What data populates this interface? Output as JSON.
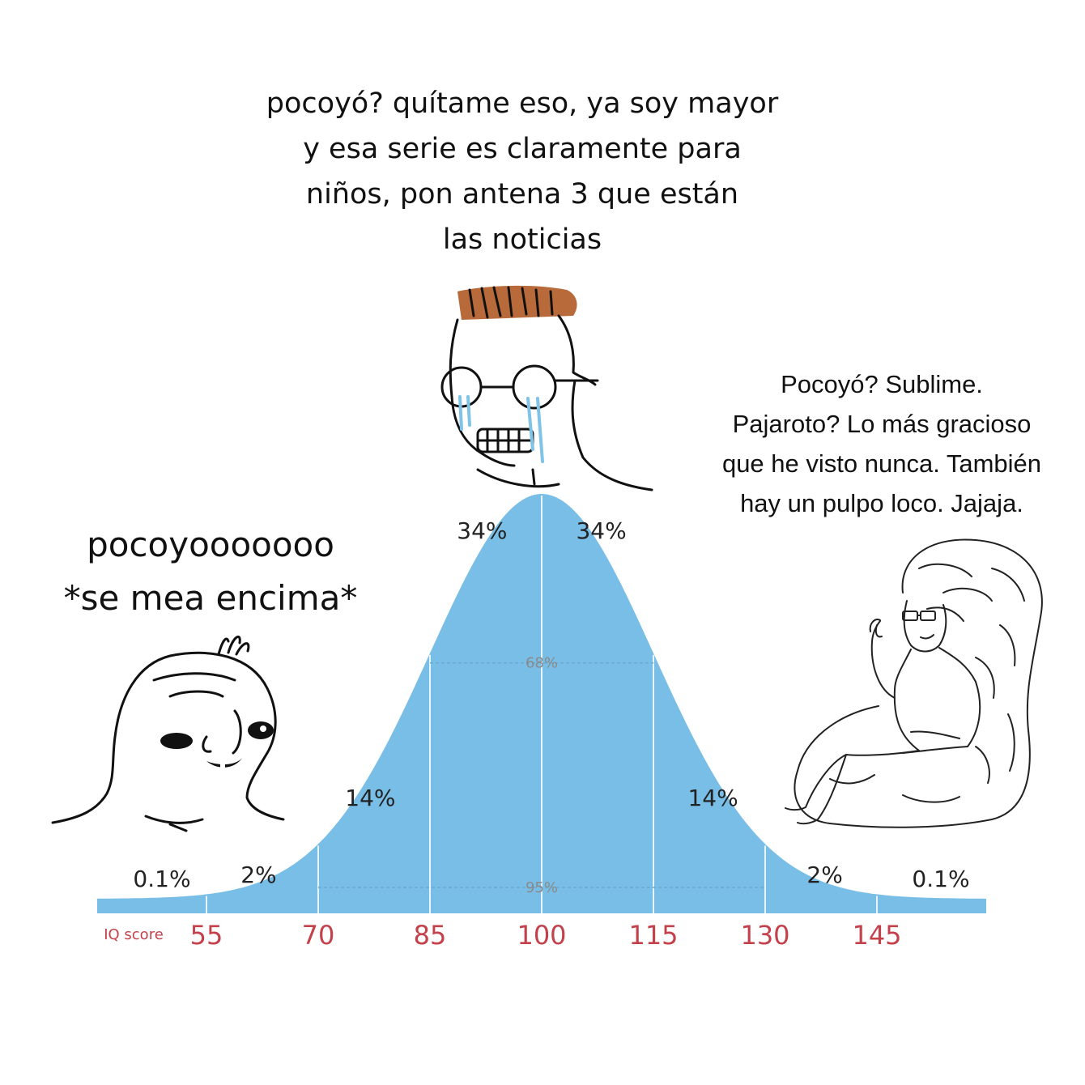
{
  "captions": {
    "middle": [
      "pocoyó? quítame eso, ya soy mayor",
      "y esa serie es claramente para",
      "niños, pon antena 3 que están",
      "las noticias"
    ],
    "right": [
      "Pocoyó? Sublime.",
      "Pajaroto? Lo más gracioso",
      "que he visto nunca. También",
      "hay un pulpo loco. Jajaja."
    ],
    "left": [
      "pocoyooooooo",
      "*se mea encima*"
    ]
  },
  "characters": {
    "left": "brainlet-wojak-icon",
    "middle": "crying-glasses-wojak-icon",
    "right": "big-brain-wojak-icon"
  },
  "chart_data": {
    "type": "area",
    "xlabel": "IQ score",
    "x_ticks": [
      55,
      70,
      85,
      100,
      115,
      130,
      145
    ],
    "mean": 100,
    "sd": 15,
    "segment_labels": [
      "0.1%",
      "2%",
      "14%",
      "34%",
      "34%",
      "14%",
      "2%",
      "0.1%"
    ],
    "band_labels": [
      "68%",
      "95%"
    ],
    "colors": {
      "fill": "#79bee6",
      "tick": "#c4404a",
      "divider": "#e6f3fb"
    }
  }
}
